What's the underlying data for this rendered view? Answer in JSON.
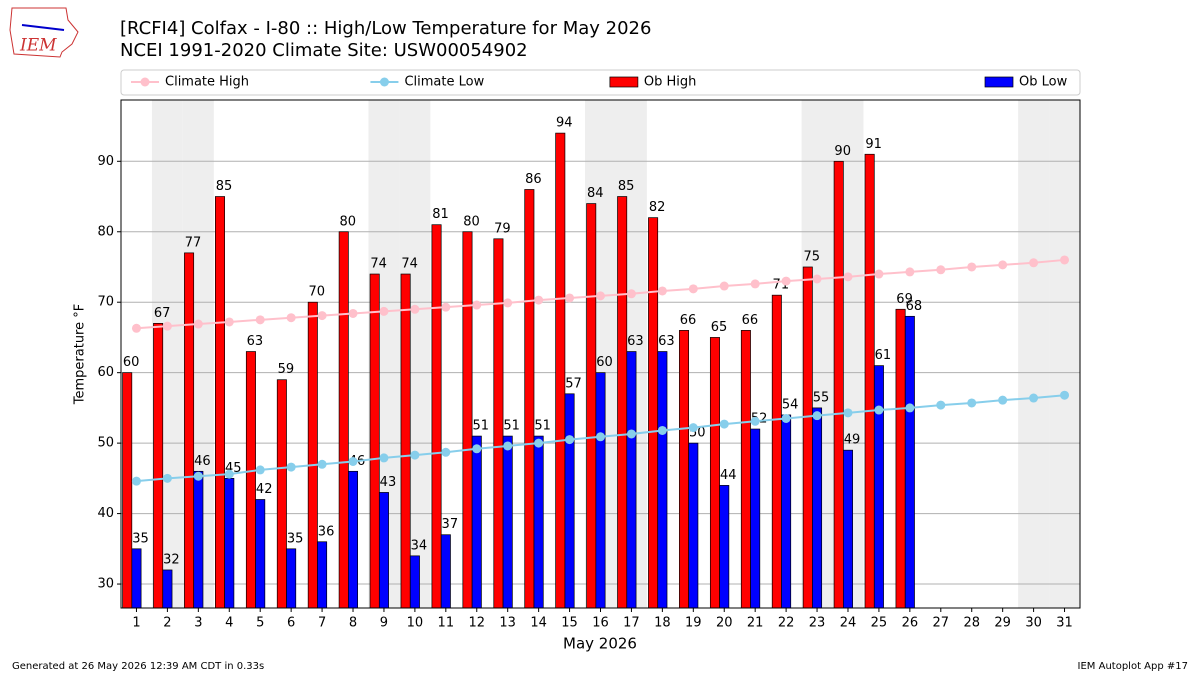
{
  "chart_data": {
    "type": "bar",
    "title": "[RCFI4] Colfax - I-80 :: High/Low Temperature for May 2026",
    "subtitle": "NCEI 1991-2020 Climate Site: USW00054902",
    "logo_text": "IEM",
    "ylabel": "Temperature °F",
    "xlabel": "May 2026",
    "footer_left": "Generated at 26 May 2026 12:39 AM CDT in 0.33s",
    "footer_right": "IEM Autoplot App #17",
    "categories": [
      "1",
      "2",
      "3",
      "4",
      "5",
      "6",
      "7",
      "8",
      "9",
      "10",
      "11",
      "12",
      "13",
      "14",
      "15",
      "16",
      "17",
      "18",
      "19",
      "20",
      "21",
      "22",
      "23",
      "24",
      "25",
      "26",
      "27",
      "28",
      "29",
      "30",
      "31"
    ],
    "shaded_categories": [
      "2",
      "3",
      "9",
      "10",
      "16",
      "17",
      "23",
      "24",
      "30",
      "31"
    ],
    "series": [
      {
        "name": "Climate High",
        "kind": "line",
        "color": "#ffc0cb",
        "values": [
          66.3,
          66.6,
          66.9,
          67.2,
          67.5,
          67.8,
          68.1,
          68.4,
          68.7,
          69.0,
          69.3,
          69.6,
          69.9,
          70.3,
          70.6,
          70.9,
          71.2,
          71.6,
          71.9,
          72.3,
          72.6,
          73.0,
          73.3,
          73.6,
          74.0,
          74.3,
          74.6,
          75.0,
          75.3,
          75.6,
          76.0
        ]
      },
      {
        "name": "Climate Low",
        "kind": "line",
        "color": "#87ceeb",
        "values": [
          44.6,
          45.0,
          45.3,
          45.6,
          46.2,
          46.6,
          47.0,
          47.4,
          47.9,
          48.3,
          48.7,
          49.2,
          49.6,
          50.0,
          50.5,
          50.9,
          51.3,
          51.8,
          52.2,
          52.7,
          53.1,
          53.5,
          53.9,
          54.3,
          54.7,
          55.0,
          55.4,
          55.7,
          56.1,
          56.4,
          56.8
        ]
      },
      {
        "name": "Ob High",
        "kind": "bar",
        "color": "#ff0000",
        "values": [
          60,
          67,
          77,
          85,
          63,
          59,
          70,
          80,
          74,
          74,
          81,
          80,
          79,
          86,
          94,
          84,
          85,
          82,
          66,
          65,
          66,
          71,
          75,
          90,
          91,
          69,
          null,
          null,
          null,
          null,
          null
        ]
      },
      {
        "name": "Ob Low",
        "kind": "bar",
        "color": "#0000ff",
        "values": [
          35,
          32,
          46,
          45,
          42,
          35,
          36,
          46,
          43,
          34,
          37,
          51,
          51,
          51,
          57,
          60,
          63,
          63,
          50,
          44,
          52,
          54,
          55,
          49,
          61,
          68,
          null,
          null,
          null,
          null,
          null
        ]
      }
    ],
    "ylim": [
      26.6,
      98.7
    ],
    "yticks": [
      30,
      40,
      50,
      60,
      70,
      80,
      90
    ],
    "grid": true,
    "legend": "top"
  }
}
